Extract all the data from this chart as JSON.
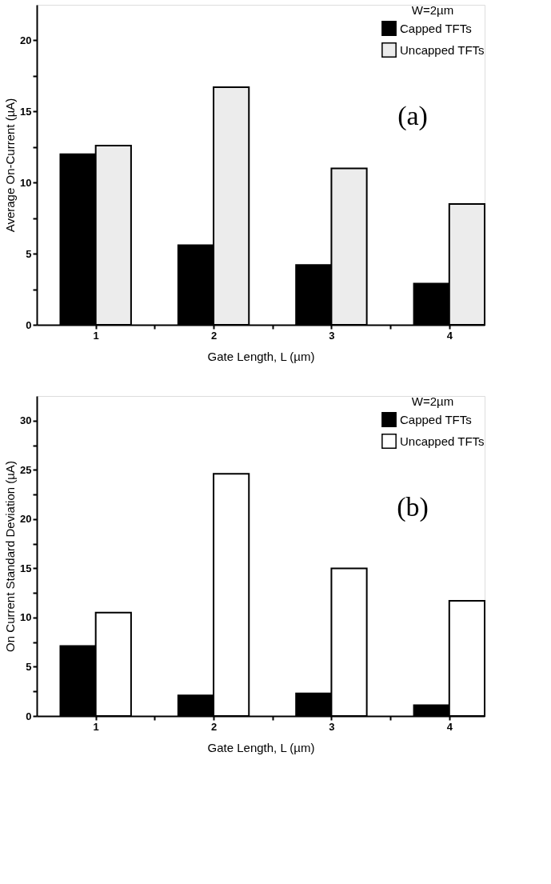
{
  "chart_data": [
    {
      "type": "bar",
      "x": [
        1,
        2,
        3,
        4
      ],
      "xlim": [
        0.5,
        4.3
      ],
      "xticks": [
        1,
        {
          "value": 1.5,
          "label": null
        },
        2,
        {
          "value": 2.5,
          "label": null
        },
        3,
        {
          "value": 3.5,
          "label": null
        },
        4
      ],
      "ylim": [
        0,
        22.5
      ],
      "yticks": [
        0,
        {
          "value": 2.5,
          "label": null
        },
        5,
        {
          "value": 7.5,
          "label": null
        },
        10,
        {
          "value": 12.5,
          "label": null
        },
        15,
        {
          "value": 17.5,
          "label": null
        },
        20
      ],
      "xlabel": "Gate Length, L (µm)",
      "ylabel": "Average On-Current (µA)",
      "legend_title": "W=2µm",
      "legend": "top right",
      "annotations": [
        "(a)"
      ],
      "series": [
        {
          "name": "Capped TFTs",
          "color": "#000000",
          "values": [
            12.0,
            5.6,
            4.2,
            2.9
          ]
        },
        {
          "name": "Uncapped TFTs",
          "color": "#ececec",
          "values": [
            12.6,
            16.7,
            11.0,
            8.5
          ]
        }
      ]
    },
    {
      "type": "bar",
      "x": [
        1,
        2,
        3,
        4
      ],
      "xlim": [
        0.5,
        4.3
      ],
      "xticks": [
        1,
        {
          "value": 1.5,
          "label": null
        },
        2,
        {
          "value": 2.5,
          "label": null
        },
        3,
        {
          "value": 3.5,
          "label": null
        },
        4
      ],
      "ylim": [
        0,
        32.5
      ],
      "yticks": [
        0,
        {
          "value": 2.5,
          "label": null
        },
        5,
        {
          "value": 7.5,
          "label": null
        },
        10,
        {
          "value": 12.5,
          "label": null
        },
        15,
        {
          "value": 17.5,
          "label": null
        },
        20,
        {
          "value": 22.5,
          "label": null
        },
        25,
        {
          "value": 27.5,
          "label": null
        },
        30
      ],
      "xlabel": "Gate Length, L (µm)",
      "ylabel": "On Current Standard Deviation (µA)",
      "legend_title": "W=2µm",
      "legend": "top right",
      "annotations": [
        "(b)"
      ],
      "series": [
        {
          "name": "Capped TFTs",
          "color": "#000000",
          "values": [
            7.1,
            2.1,
            2.3,
            1.1
          ]
        },
        {
          "name": "Uncapped TFTs",
          "color": "#ffffff",
          "values": [
            10.5,
            24.6,
            15.0,
            11.7
          ]
        }
      ]
    }
  ]
}
